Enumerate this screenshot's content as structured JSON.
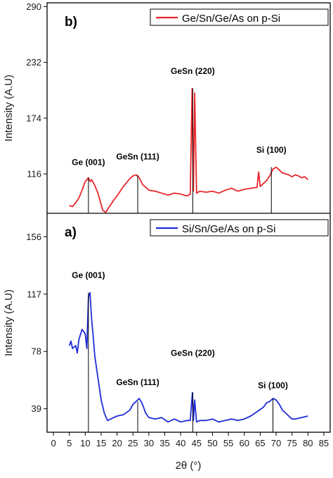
{
  "chart_data": [
    {
      "type": "line",
      "panel_label": "b)",
      "legend": "Ge/Sn/Ge/As on p-Si",
      "color": "#e8262b",
      "ylabel": "Intensity (A.U)",
      "yticks": [
        116,
        174,
        232,
        290
      ],
      "ylim": [
        75,
        294
      ],
      "xlim": [
        -2,
        87
      ],
      "x": [
        5,
        6,
        7,
        8,
        9,
        10,
        11,
        11.5,
        12,
        13,
        14,
        15,
        15.5,
        16,
        16.5,
        17,
        18,
        19,
        20,
        21,
        22,
        23,
        24,
        25,
        26,
        27,
        28,
        29,
        30,
        32,
        34,
        36,
        38,
        40,
        42,
        43,
        43.6,
        44,
        44.4,
        45,
        46,
        48,
        50,
        52,
        54,
        56,
        58,
        60,
        62,
        64,
        64.5,
        65,
        66,
        67,
        68,
        69,
        70,
        71,
        72,
        73,
        74,
        75,
        76,
        77,
        78,
        79,
        80
      ],
      "y": [
        83,
        82,
        86,
        91,
        99,
        108,
        112,
        108,
        110,
        104,
        96,
        84,
        78,
        77,
        76,
        79,
        84,
        89,
        93,
        98,
        103,
        107,
        111,
        114,
        115,
        112,
        105,
        102,
        99,
        98,
        96,
        94,
        96,
        95,
        93,
        95,
        205,
        98,
        200,
        96,
        98,
        97,
        98,
        96,
        99,
        101,
        98,
        100,
        101,
        102,
        118,
        103,
        106,
        109,
        114,
        121,
        123,
        120,
        117,
        116,
        115,
        113,
        115,
        114,
        112,
        113,
        110
      ],
      "annotations": [
        {
          "text": "Ge (001)",
          "x": 11,
          "y": 112,
          "ty": 125
        },
        {
          "text": "GeSn (111)",
          "x": 26.5,
          "y": 115,
          "ty": 131
        },
        {
          "text": "GeSn (220)",
          "x": 43.8,
          "y": 205,
          "ty": 220
        },
        {
          "text": "Si (100)",
          "x": 68.5,
          "y": 123,
          "ty": 138
        }
      ]
    },
    {
      "type": "line",
      "panel_label": "a)",
      "legend": "Si/Sn/Ge/As on p-Si",
      "color": "#1f2bd6",
      "ylabel": "Intensity (A.U)",
      "yticks": [
        39,
        78,
        117,
        156
      ],
      "ylim": [
        23,
        172
      ],
      "xlim": [
        -2,
        87
      ],
      "xticks": [
        0,
        5,
        10,
        15,
        20,
        25,
        30,
        35,
        40,
        45,
        50,
        55,
        60,
        65,
        70,
        75,
        80,
        85
      ],
      "xlabel": "2θ (°)",
      "x": [
        5,
        5.5,
        6,
        7,
        7.5,
        8,
        9,
        10,
        10.5,
        11,
        11.5,
        12,
        12.5,
        13,
        14,
        15,
        16,
        17,
        18,
        19,
        20,
        22,
        24,
        25,
        26,
        27,
        28,
        29,
        30,
        32,
        34,
        36,
        38,
        40,
        42,
        43,
        43.7,
        44,
        44.4,
        45,
        46,
        48,
        50,
        52,
        54,
        56,
        58,
        60,
        62,
        64,
        66,
        67,
        68,
        69,
        70,
        71,
        72,
        73,
        74,
        75,
        76,
        78,
        80
      ],
      "y": [
        82,
        85,
        80,
        82,
        77,
        86,
        93,
        90,
        80,
        115,
        118,
        100,
        88,
        75,
        60,
        45,
        36,
        31,
        32,
        33,
        34,
        35,
        38,
        42,
        44,
        46,
        42,
        36,
        33,
        32,
        33,
        30,
        32,
        30,
        31,
        31,
        50,
        31,
        45,
        30,
        31,
        31,
        32,
        30,
        31,
        32,
        31,
        32,
        34,
        37,
        40,
        43,
        44,
        46,
        45,
        42,
        38,
        36,
        34,
        32,
        32,
        33,
        34
      ],
      "annotations": [
        {
          "text": "Ge (001)",
          "x": 11,
          "y": 118,
          "ty": 128
        },
        {
          "text": "GeSn (111)",
          "x": 26.5,
          "y": 44,
          "ty": 55
        },
        {
          "text": "GeSn (220)",
          "x": 43.8,
          "y": 50,
          "ty": 75
        },
        {
          "text": "Si (100)",
          "x": 69,
          "y": 46,
          "ty": 53
        }
      ]
    }
  ]
}
